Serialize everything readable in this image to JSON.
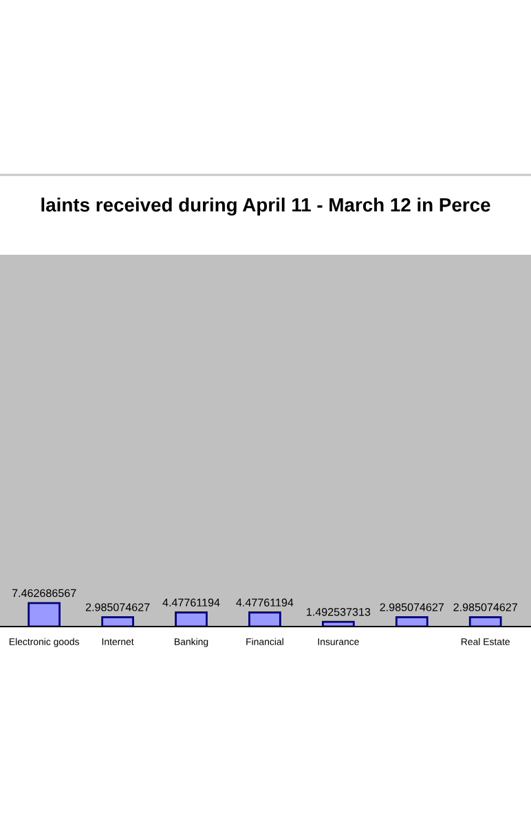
{
  "chart_data": {
    "type": "bar",
    "title": "laints received during April 11 - March 12 in Perce",
    "categories": [
      "Electronic goods",
      "Internet",
      "Banking",
      "Financial",
      "Insurance",
      null,
      "Real Estate"
    ],
    "values": [
      7.462686567,
      2.985074627,
      4.47761194,
      4.47761194,
      1.492537313,
      2.985074627,
      2.985074627
    ],
    "color": "#9999ff",
    "ylim": [
      0,
      118
    ],
    "data_labels": true,
    "grid": false,
    "legend": false
  }
}
